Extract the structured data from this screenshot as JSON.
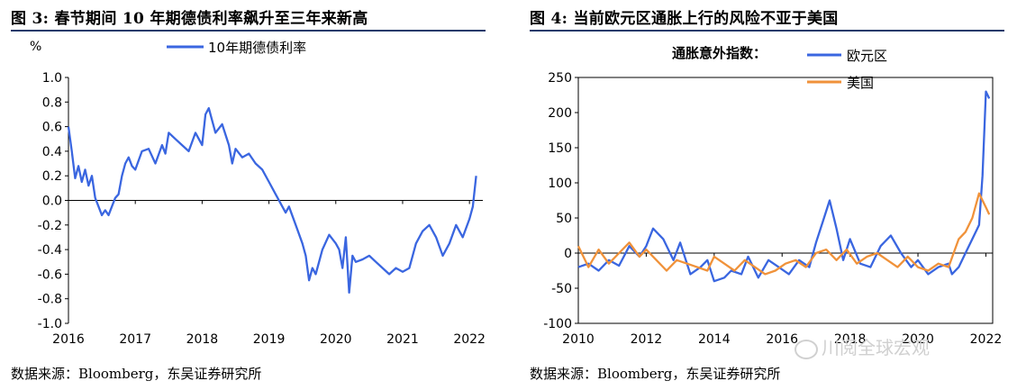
{
  "left_panel": {
    "title": "图 3:  春节期间 10 年期德债利率飙升至三年来新高",
    "source": "数据来源：Bloomberg，东吴证券研究所"
  },
  "right_panel": {
    "title": "图 4:  当前欧元区通胀上行的风险不亚于美国",
    "source": "数据来源：Bloomberg，东吴证券研究所"
  },
  "watermark": "川阅全球宏观",
  "colors": {
    "blue": "#3a66e0",
    "orange": "#f0923a",
    "title_rule": "#1f3a6b"
  },
  "chart_data": [
    {
      "type": "line",
      "title": "图 3:  春节期间 10 年期德债利率飙升至三年来新高",
      "unit_label": "%",
      "ylim": [
        -1.0,
        1.0
      ],
      "yticks": [
        "1.0",
        "0.8",
        "0.6",
        "0.4",
        "0.2",
        "0.0",
        "-0.2",
        "-0.4",
        "-0.6",
        "-0.8",
        "-1.0"
      ],
      "xlim": [
        2016.0,
        2022.2
      ],
      "xticks": [
        "2016",
        "2017",
        "2018",
        "2019",
        "2020",
        "2021",
        "2022"
      ],
      "legend_position": "top-center",
      "series": [
        {
          "name": "10年期德债利率",
          "color": "#3a66e0",
          "x": [
            2016.0,
            2016.05,
            2016.1,
            2016.15,
            2016.2,
            2016.25,
            2016.3,
            2016.35,
            2016.4,
            2016.45,
            2016.5,
            2016.55,
            2016.6,
            2016.65,
            2016.7,
            2016.75,
            2016.8,
            2016.85,
            2016.9,
            2016.95,
            2017.0,
            2017.1,
            2017.2,
            2017.3,
            2017.4,
            2017.45,
            2017.5,
            2017.6,
            2017.7,
            2017.8,
            2017.9,
            2018.0,
            2018.05,
            2018.1,
            2018.15,
            2018.2,
            2018.3,
            2018.4,
            2018.45,
            2018.5,
            2018.6,
            2018.7,
            2018.8,
            2018.9,
            2019.0,
            2019.1,
            2019.2,
            2019.25,
            2019.3,
            2019.4,
            2019.5,
            2019.55,
            2019.6,
            2019.65,
            2019.7,
            2019.8,
            2019.9,
            2020.0,
            2020.05,
            2020.1,
            2020.15,
            2020.2,
            2020.25,
            2020.3,
            2020.4,
            2020.5,
            2020.6,
            2020.7,
            2020.8,
            2020.9,
            2021.0,
            2021.1,
            2021.2,
            2021.3,
            2021.4,
            2021.5,
            2021.6,
            2021.7,
            2021.8,
            2021.9,
            2022.0,
            2022.05,
            2022.1
          ],
          "y": [
            0.6,
            0.4,
            0.18,
            0.28,
            0.15,
            0.25,
            0.12,
            0.2,
            0.02,
            -0.05,
            -0.12,
            -0.08,
            -0.12,
            -0.05,
            0.02,
            0.05,
            0.2,
            0.3,
            0.35,
            0.28,
            0.25,
            0.4,
            0.42,
            0.3,
            0.45,
            0.38,
            0.55,
            0.5,
            0.45,
            0.4,
            0.55,
            0.45,
            0.7,
            0.75,
            0.65,
            0.55,
            0.62,
            0.45,
            0.3,
            0.42,
            0.35,
            0.38,
            0.3,
            0.25,
            0.15,
            0.05,
            -0.05,
            -0.1,
            -0.05,
            -0.2,
            -0.35,
            -0.45,
            -0.65,
            -0.55,
            -0.6,
            -0.4,
            -0.28,
            -0.35,
            -0.4,
            -0.55,
            -0.3,
            -0.75,
            -0.45,
            -0.5,
            -0.48,
            -0.45,
            -0.5,
            -0.55,
            -0.6,
            -0.55,
            -0.58,
            -0.55,
            -0.35,
            -0.25,
            -0.2,
            -0.3,
            -0.45,
            -0.35,
            -0.2,
            -0.3,
            -0.15,
            -0.05,
            0.2
          ]
        }
      ]
    },
    {
      "type": "line",
      "title": "图 4:  当前欧元区通胀上行的风险不亚于美国",
      "legend_title": "通胀意外指数：",
      "ylim": [
        -100,
        250
      ],
      "yticks": [
        "250",
        "200",
        "150",
        "100",
        "50",
        "0",
        "-50",
        "-100"
      ],
      "xlim": [
        2010.0,
        2022.2
      ],
      "xticks": [
        "2010",
        "2012",
        "2014",
        "2016",
        "2018",
        "2020",
        "2022"
      ],
      "legend_position": "top-right",
      "series": [
        {
          "name": "欧元区",
          "color": "#3a66e0",
          "x": [
            2010.0,
            2010.3,
            2010.6,
            2010.9,
            2011.2,
            2011.5,
            2011.8,
            2012.0,
            2012.2,
            2012.5,
            2012.8,
            2013.0,
            2013.3,
            2013.6,
            2013.8,
            2014.0,
            2014.3,
            2014.5,
            2014.8,
            2015.0,
            2015.3,
            2015.6,
            2015.9,
            2016.2,
            2016.5,
            2016.8,
            2017.0,
            2017.2,
            2017.4,
            2017.6,
            2017.8,
            2018.0,
            2018.3,
            2018.6,
            2018.9,
            2019.2,
            2019.5,
            2019.8,
            2020.0,
            2020.3,
            2020.6,
            2020.9,
            2021.0,
            2021.2,
            2021.4,
            2021.6,
            2021.8,
            2021.9,
            2022.0,
            2022.1
          ],
          "y": [
            -20,
            -15,
            -25,
            -10,
            -18,
            10,
            -5,
            10,
            35,
            20,
            -10,
            15,
            -30,
            -20,
            -10,
            -40,
            -35,
            -25,
            -30,
            -5,
            -35,
            -10,
            -20,
            -30,
            -10,
            -20,
            15,
            45,
            75,
            35,
            -10,
            20,
            -15,
            -20,
            10,
            25,
            0,
            -20,
            -10,
            -30,
            -20,
            -15,
            -30,
            -20,
            0,
            20,
            40,
            110,
            230,
            220
          ]
        },
        {
          "name": "美国",
          "color": "#f0923a",
          "x": [
            2010.0,
            2010.3,
            2010.6,
            2010.9,
            2011.2,
            2011.5,
            2011.8,
            2012.0,
            2012.3,
            2012.6,
            2012.9,
            2013.2,
            2013.5,
            2013.8,
            2014.0,
            2014.3,
            2014.6,
            2014.9,
            2015.2,
            2015.5,
            2015.8,
            2016.1,
            2016.4,
            2016.7,
            2017.0,
            2017.3,
            2017.6,
            2017.9,
            2018.2,
            2018.5,
            2018.8,
            2019.1,
            2019.4,
            2019.7,
            2020.0,
            2020.3,
            2020.6,
            2020.9,
            2021.2,
            2021.4,
            2021.6,
            2021.8,
            2022.0,
            2022.1
          ],
          "y": [
            10,
            -20,
            5,
            -15,
            0,
            15,
            -5,
            5,
            -10,
            -25,
            -10,
            -15,
            -20,
            -25,
            -5,
            -15,
            -25,
            -10,
            -20,
            -30,
            -25,
            -15,
            -10,
            -20,
            0,
            5,
            -10,
            5,
            -15,
            -5,
            0,
            -10,
            -20,
            -5,
            -20,
            -25,
            -15,
            -20,
            20,
            30,
            50,
            85,
            65,
            55
          ]
        }
      ]
    }
  ]
}
